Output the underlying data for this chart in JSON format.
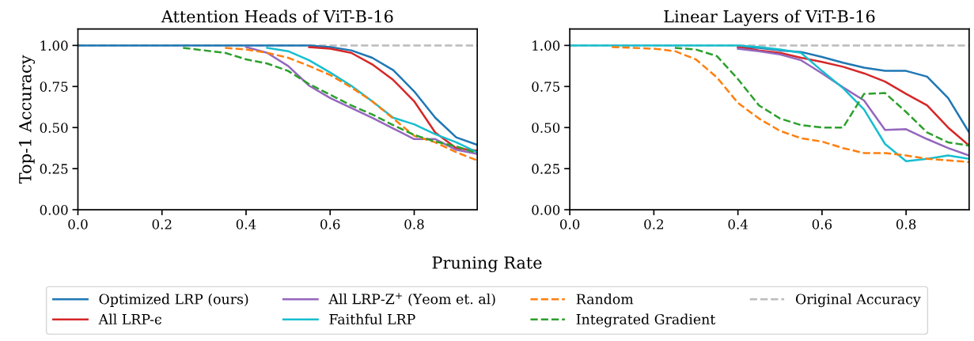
{
  "chart_data": [
    {
      "type": "line",
      "title": "Attention Heads of ViT-B-16",
      "xlabel": "Pruning Rate",
      "ylabel": "Top-1 Accuracy",
      "legend": "bottom",
      "grid": false,
      "x": [
        0.0,
        0.05,
        0.1,
        0.15,
        0.2,
        0.25,
        0.3,
        0.35,
        0.4,
        0.45,
        0.5,
        0.55,
        0.6,
        0.65,
        0.7,
        0.75,
        0.8,
        0.85,
        0.9,
        0.95
      ],
      "xlim": [
        0,
        0.95
      ],
      "xticks": [
        {
          "value": 0,
          "label": "0.0"
        },
        {
          "value": 0.2,
          "label": "0.2"
        },
        {
          "value": 0.4,
          "label": "0.4"
        },
        {
          "value": 0.6,
          "label": "0.6"
        },
        {
          "value": 0.8,
          "label": "0.8"
        }
      ],
      "ylim": [
        0,
        1.1
      ],
      "yticks": [
        {
          "value": 0,
          "label": "0.00"
        },
        {
          "value": 0.25,
          "label": "0.25"
        },
        {
          "value": 0.5,
          "label": "0.50"
        },
        {
          "value": 0.75,
          "label": "0.75"
        },
        {
          "value": 1,
          "label": "1.00"
        }
      ],
      "series": [
        {
          "name": "Optimized LRP (ours)",
          "color": "#1f77b4",
          "line_style": "solid",
          "values": [
            1,
            1,
            1,
            1,
            1,
            1,
            1,
            1,
            1,
            1,
            1,
            1,
            0.99,
            0.97,
            0.925,
            0.85,
            0.72,
            0.56,
            0.44,
            0.395
          ]
        },
        {
          "name": "All LRP-ϵ",
          "color": "#d62728",
          "line_style": "solid",
          "values": [
            null,
            null,
            null,
            null,
            null,
            null,
            null,
            null,
            null,
            null,
            null,
            0.99,
            0.98,
            0.955,
            0.885,
            0.79,
            0.66,
            0.47,
            0.375,
            0.36
          ]
        },
        {
          "name": "All LRP-Z$^{+}$ (Yeom et. al)",
          "color": "#9467bd",
          "line_style": "solid",
          "values": [
            null,
            null,
            null,
            null,
            null,
            null,
            null,
            null,
            0.99,
            0.955,
            0.875,
            0.755,
            0.68,
            0.62,
            0.56,
            0.495,
            0.43,
            0.43,
            0.365,
            0.34
          ]
        },
        {
          "name": "Faithful LRP",
          "color": "#17becf",
          "line_style": "solid",
          "values": [
            null,
            null,
            null,
            null,
            null,
            null,
            null,
            null,
            null,
            0.985,
            0.965,
            0.91,
            0.835,
            0.755,
            0.66,
            0.56,
            0.52,
            0.46,
            0.41,
            0.35
          ]
        },
        {
          "name": "Random",
          "color": "#ff7f0e",
          "line_style": "dashed",
          "values": [
            null,
            null,
            null,
            null,
            null,
            null,
            null,
            0.985,
            0.975,
            0.955,
            0.925,
            0.875,
            0.82,
            0.745,
            0.66,
            0.555,
            0.45,
            0.41,
            0.35,
            0.3
          ]
        },
        {
          "name": "Integrated Gradient",
          "color": "#2ca02c",
          "line_style": "dashed",
          "values": [
            null,
            null,
            null,
            null,
            null,
            0.985,
            0.97,
            0.955,
            0.915,
            0.89,
            0.845,
            0.765,
            0.7,
            0.635,
            0.58,
            0.515,
            0.455,
            0.415,
            0.385,
            0.345
          ]
        }
      ],
      "ref_lines": [
        {
          "axis": "y",
          "value": 1,
          "label": "Original Accuracy",
          "color": "#bbbbbb",
          "line_style": "dashed"
        }
      ]
    },
    {
      "type": "line",
      "title": "Linear Layers of ViT-B-16",
      "legend": "bottom",
      "grid": false,
      "x": [
        0.0,
        0.05,
        0.1,
        0.15,
        0.2,
        0.25,
        0.3,
        0.35,
        0.4,
        0.45,
        0.5,
        0.55,
        0.6,
        0.65,
        0.7,
        0.75,
        0.8,
        0.85,
        0.9,
        0.95
      ],
      "xlim": [
        0,
        0.95
      ],
      "xticks": [
        {
          "value": 0,
          "label": "0.0"
        },
        {
          "value": 0.2,
          "label": "0.2"
        },
        {
          "value": 0.4,
          "label": "0.4"
        },
        {
          "value": 0.6,
          "label": "0.6"
        },
        {
          "value": 0.8,
          "label": "0.8"
        }
      ],
      "ylim": [
        0,
        1.1
      ],
      "yticks": [
        {
          "value": 0,
          "label": "0.00"
        },
        {
          "value": 0.25,
          "label": "0.25"
        },
        {
          "value": 0.5,
          "label": "0.50"
        },
        {
          "value": 0.75,
          "label": "0.75"
        },
        {
          "value": 1,
          "label": "1.00"
        }
      ],
      "series": [
        {
          "name": "Optimized LRP (ours)",
          "color": "#1f77b4",
          "line_style": "solid",
          "values": [
            null,
            null,
            null,
            null,
            null,
            null,
            null,
            null,
            0.99,
            0.985,
            0.97,
            0.96,
            0.93,
            0.895,
            0.865,
            0.845,
            0.845,
            0.81,
            0.68,
            0.47
          ]
        },
        {
          "name": "All LRP-ϵ",
          "color": "#d62728",
          "line_style": "solid",
          "values": [
            null,
            null,
            null,
            null,
            null,
            null,
            null,
            null,
            0.99,
            0.97,
            0.955,
            0.925,
            0.9,
            0.87,
            0.83,
            0.78,
            0.705,
            0.635,
            0.5,
            0.39
          ]
        },
        {
          "name": "All LRP-Z$^{+}$ (Yeom et. al)",
          "color": "#9467bd",
          "line_style": "solid",
          "values": [
            null,
            null,
            null,
            null,
            null,
            null,
            null,
            null,
            0.98,
            0.965,
            0.945,
            0.91,
            0.83,
            0.745,
            0.665,
            0.485,
            0.49,
            0.43,
            0.375,
            0.33
          ]
        },
        {
          "name": "Faithful LRP",
          "color": "#17becf",
          "line_style": "solid",
          "values": [
            1,
            1,
            1,
            1,
            1,
            1,
            1,
            1,
            1,
            0.99,
            0.975,
            0.955,
            0.845,
            0.74,
            0.61,
            0.4,
            0.295,
            0.31,
            0.33,
            0.31
          ]
        },
        {
          "name": "Random",
          "color": "#ff7f0e",
          "line_style": "dashed",
          "values": [
            null,
            null,
            0.99,
            0.985,
            0.98,
            0.965,
            0.915,
            0.805,
            0.65,
            0.555,
            0.48,
            0.435,
            0.415,
            0.375,
            0.345,
            0.345,
            0.33,
            0.31,
            0.3,
            0.29
          ]
        },
        {
          "name": "Integrated Gradient",
          "color": "#2ca02c",
          "line_style": "dashed",
          "values": [
            null,
            null,
            null,
            null,
            null,
            0.985,
            0.975,
            0.935,
            0.795,
            0.635,
            0.555,
            0.515,
            0.5,
            0.5,
            0.705,
            0.71,
            0.595,
            0.47,
            0.41,
            0.39
          ]
        }
      ],
      "ref_lines": [
        {
          "axis": "y",
          "value": 1,
          "color": "#bbbbbb",
          "line_style": "dashed"
        }
      ]
    }
  ]
}
